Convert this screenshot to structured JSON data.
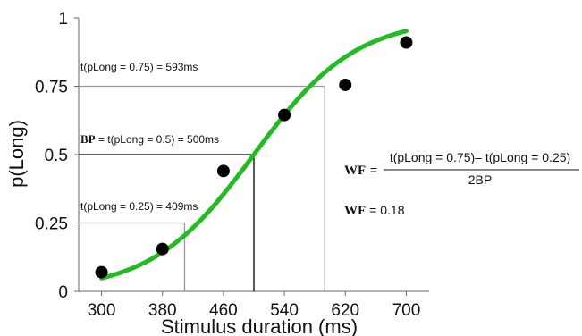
{
  "chart_data": {
    "type": "scatter",
    "xlabel": "Stimulus duration (ms)",
    "ylabel": "p(Long)",
    "xlim": [
      270,
      730
    ],
    "ylim": [
      0,
      1
    ],
    "x_ticks": [
      "300",
      "380",
      "460",
      "540",
      "620",
      "700"
    ],
    "y_ticks": [
      "0",
      "0.25",
      "0.5",
      "0.75",
      "1"
    ],
    "points": [
      {
        "x": 300,
        "y": 0.07
      },
      {
        "x": 380,
        "y": 0.155
      },
      {
        "x": 460,
        "y": 0.44
      },
      {
        "x": 540,
        "y": 0.645
      },
      {
        "x": 620,
        "y": 0.755
      },
      {
        "x": 700,
        "y": 0.91
      }
    ],
    "fit_curve": {
      "type": "logistic",
      "midpoint": 500,
      "scale": 67,
      "x_range": [
        300,
        700
      ],
      "color": "#22bb22"
    },
    "reference_lines": [
      {
        "x": 409,
        "y": 0.25,
        "color": "#999999"
      },
      {
        "x": 500,
        "y": 0.5,
        "color": "#000000"
      },
      {
        "x": 593,
        "y": 0.75,
        "color": "#999999"
      }
    ],
    "annotations": {
      "t075": "t(pLong = 0.75) = 593ms",
      "bp_bold": "BP",
      "bp_rest": " = t(pLong = 0.5) = 500ms",
      "t025": "t(pLong = 0.25) = 409ms",
      "wf_label": "WF",
      "wf_eq_sign": "=",
      "wf_numerator": "t(pLong = 0.75)– t(pLong = 0.25)",
      "wf_denominator": "2BP",
      "wf_value_label": "WF",
      "wf_value": "= 0.18"
    }
  }
}
